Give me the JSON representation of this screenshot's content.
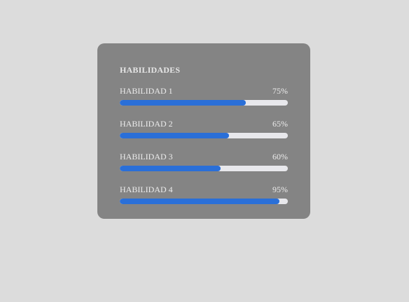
{
  "card": {
    "title": "HABILIDADES"
  },
  "skills": [
    {
      "label": "HABILIDAD 1",
      "percent_text": "75%",
      "level": 0.75
    },
    {
      "label": "HABILIDAD 2",
      "percent_text": "65%",
      "level": 0.65
    },
    {
      "label": "HABILIDAD 3",
      "percent_text": "60%",
      "level": 0.6
    },
    {
      "label": "HABILIDAD 4",
      "percent_text": "95%",
      "level": 0.95
    }
  ],
  "colors": {
    "background": "#dcdcdc",
    "card": "#848484",
    "track": "#e8e8ec",
    "fill": "#2a6fd8",
    "text": "#ececec"
  }
}
